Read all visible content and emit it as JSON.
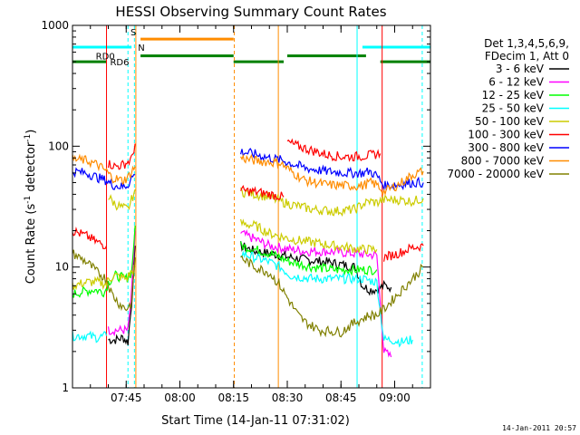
{
  "chart_data": {
    "type": "line",
    "title": "HESSI Observing Summary Count Rates",
    "xlabel": "Start Time (14-Jan-11 07:31:02)",
    "ylabel_main": "Count Rate (s",
    "ylabel_sup1": "-1",
    "ylabel_mid": " detector",
    "ylabel_sup2": "-1",
    "ylabel_end": ")",
    "timestamp": "14-Jan-2011 20:57",
    "x_range_min": [
      -1,
      99
    ],
    "y_scale": "log",
    "ylim": [
      1,
      1000
    ],
    "x_ticks": [
      {
        "t": 14,
        "label": "07:45"
      },
      {
        "t": 29,
        "label": "08:00"
      },
      {
        "t": 44,
        "label": "08:15"
      },
      {
        "t": 59,
        "label": "08:30"
      },
      {
        "t": 74,
        "label": "08:45"
      },
      {
        "t": 89,
        "label": "09:00"
      }
    ],
    "y_ticks": [
      {
        "v": 1,
        "label": "1"
      },
      {
        "v": 10,
        "label": "10"
      },
      {
        "v": 100,
        "label": "100"
      },
      {
        "v": 1000,
        "label": "1000"
      }
    ],
    "legend": {
      "header1": "Det 1,3,4,5,6,9,",
      "header2": "FDecim 1, Att 0",
      "entries": [
        {
          "label": "3 - 6 keV",
          "color": "#000000"
        },
        {
          "label": "6 - 12 keV",
          "color": "#ff00ff"
        },
        {
          "label": "12 - 25 keV",
          "color": "#00ff00"
        },
        {
          "label": "25 - 50 keV",
          "color": "#00ffff"
        },
        {
          "label": "50 - 100 keV",
          "color": "#cccc00"
        },
        {
          "label": "100 - 300 keV",
          "color": "#ff0000"
        },
        {
          "label": "300 - 800 keV",
          "color": "#0000ff"
        },
        {
          "label": "800 - 7000 keV",
          "color": "#ff8c00"
        },
        {
          "label": "7000 - 20000 keV",
          "color": "#808000"
        }
      ]
    },
    "flag_labels": {
      "rd0": "RD0",
      "rd6": "RD6",
      "s": "S",
      "n": "N"
    },
    "flags": {
      "cyan_bar": {
        "color": "#00ffff",
        "value": 660,
        "segments": [
          [
            -1,
            15.5
          ],
          [
            80,
            99
          ]
        ]
      },
      "orange_bar": {
        "color": "#ff8c00",
        "value": 770,
        "segments": [
          [
            18,
            44
          ]
        ]
      },
      "green_upper": {
        "color": "#008000",
        "value": 560,
        "segments": [
          [
            18,
            44
          ],
          [
            59,
            81
          ]
        ]
      },
      "green_lower": {
        "color": "#008000",
        "value": 500,
        "segments": [
          [
            -1,
            8.5
          ],
          [
            44,
            58
          ],
          [
            85,
            99
          ]
        ]
      }
    },
    "vlines": [
      {
        "t": 8.5,
        "color": "#ff0000",
        "dash": false
      },
      {
        "t": 14.5,
        "color": "#00ffff",
        "dash": true
      },
      {
        "t": 16.3,
        "color": "#00ffff",
        "dash": true
      },
      {
        "t": 16.7,
        "color": "#ff8c00",
        "dash": false
      },
      {
        "t": 44.2,
        "color": "#ff8c00",
        "dash": true
      },
      {
        "t": 56.5,
        "color": "#ff8c00",
        "dash": false
      },
      {
        "t": 78.5,
        "color": "#00ffff",
        "dash": false
      },
      {
        "t": 85.5,
        "color": "#ff0000",
        "dash": false
      },
      {
        "t": 96.7,
        "color": "#00ffff",
        "dash": true
      }
    ],
    "series": [
      {
        "name": "3 - 6 keV",
        "color": "#000000",
        "segments": [
          [
            [
              9,
              2.5
            ],
            [
              11,
              2.5
            ],
            [
              13,
              2.6
            ],
            [
              14.5,
              2.4
            ],
            [
              15.5,
              5
            ],
            [
              16.5,
              15
            ]
          ],
          [
            [
              46,
              15
            ],
            [
              50,
              13.5
            ],
            [
              54,
              13
            ],
            [
              57,
              12.5
            ],
            [
              60,
              12
            ],
            [
              64,
              11.5
            ],
            [
              70,
              11
            ],
            [
              74,
              10.5
            ],
            [
              78,
              10
            ],
            [
              80,
              7
            ],
            [
              82,
              6.5
            ],
            [
              84,
              6.5
            ],
            [
              86,
              7
            ],
            [
              88,
              6.8
            ]
          ]
        ]
      },
      {
        "name": "6 - 12 keV",
        "color": "#ff00ff",
        "segments": [
          [
            [
              9,
              3
            ],
            [
              11,
              3
            ],
            [
              13,
              3
            ],
            [
              14.5,
              3
            ],
            [
              15.5,
              6
            ],
            [
              16.5,
              20
            ]
          ],
          [
            [
              46,
              19
            ],
            [
              50,
              17
            ],
            [
              54,
              15
            ],
            [
              57,
              14.5
            ],
            [
              60,
              14
            ],
            [
              64,
              13.5
            ],
            [
              70,
              13.5
            ],
            [
              74,
              13.2
            ],
            [
              80,
              12.8
            ],
            [
              84,
              12.5
            ],
            [
              86,
              2
            ],
            [
              88,
              1.8
            ]
          ]
        ]
      },
      {
        "name": "12 - 25 keV",
        "color": "#00ff00",
        "segments": [
          [
            [
              -1,
              6
            ],
            [
              5,
              6.5
            ],
            [
              8,
              6.2
            ],
            [
              9,
              7.5
            ],
            [
              11,
              8.5
            ],
            [
              14,
              8
            ],
            [
              15.5,
              9
            ],
            [
              16.5,
              22
            ]
          ],
          [
            [
              46,
              15
            ],
            [
              50,
              14
            ],
            [
              54,
              13
            ],
            [
              57,
              12
            ],
            [
              60,
              11
            ],
            [
              66,
              10
            ],
            [
              72,
              9.5
            ],
            [
              78,
              9.5
            ],
            [
              84,
              9.5
            ]
          ]
        ]
      },
      {
        "name": "25 - 50 keV",
        "color": "#00ffff",
        "segments": [
          [
            [
              -1,
              2.7
            ],
            [
              3,
              2.7
            ],
            [
              6,
              2.6
            ],
            [
              8.5,
              2.7
            ]
          ],
          [
            [
              46,
              13
            ],
            [
              50,
              12
            ],
            [
              54,
              11
            ],
            [
              57,
              10
            ],
            [
              60,
              8.5
            ],
            [
              66,
              8
            ],
            [
              72,
              8
            ],
            [
              78,
              8
            ],
            [
              80,
              8
            ],
            [
              84,
              7.5
            ],
            [
              86,
              2.5
            ],
            [
              88,
              2.5
            ],
            [
              91,
              2.4
            ],
            [
              94,
              2.5
            ]
          ]
        ]
      },
      {
        "name": "50 - 100 keV",
        "color": "#cccc00",
        "segments": [
          [
            [
              -1,
              7
            ],
            [
              3,
              7.5
            ],
            [
              6,
              7.5
            ],
            [
              8.5,
              7.2
            ],
            [
              9,
              8
            ],
            [
              11,
              8.5
            ],
            [
              14,
              8
            ],
            [
              16.5,
              10
            ]
          ],
          [
            [
              46,
              23
            ],
            [
              50,
              22
            ],
            [
              54,
              19
            ],
            [
              57,
              18
            ],
            [
              60,
              17
            ],
            [
              66,
              16
            ],
            [
              72,
              15
            ],
            [
              80,
              14
            ],
            [
              84,
              14
            ]
          ],
          [
            [
              9,
              38
            ],
            [
              11,
              33
            ],
            [
              13,
              31
            ],
            [
              14.5,
              30
            ],
            [
              15.5,
              36
            ],
            [
              16.5,
              44
            ]
          ],
          [
            [
              46,
              42
            ],
            [
              50,
              40
            ],
            [
              54,
              38
            ],
            [
              57,
              35
            ],
            [
              60,
              33
            ],
            [
              66,
              30
            ],
            [
              72,
              29
            ],
            [
              78,
              30
            ],
            [
              80,
              33
            ],
            [
              82,
              35
            ],
            [
              84,
              34
            ],
            [
              86,
              36
            ],
            [
              90,
              36
            ],
            [
              94,
              35
            ],
            [
              97,
              37
            ]
          ]
        ]
      },
      {
        "name": "100 - 300 keV",
        "color": "#ff0000",
        "segments": [
          [
            [
              -1,
              20
            ],
            [
              3,
              18
            ],
            [
              6,
              16
            ],
            [
              8.5,
              15
            ]
          ],
          [
            [
              9,
              72
            ],
            [
              11,
              68
            ],
            [
              13,
              70
            ],
            [
              14.5,
              74
            ],
            [
              15.5,
              78
            ],
            [
              16.5,
              105
            ]
          ],
          [
            [
              46,
              43
            ],
            [
              50,
              42
            ],
            [
              54,
              40
            ],
            [
              58,
              38
            ]
          ],
          [
            [
              59,
              108
            ],
            [
              62,
              100
            ],
            [
              66,
              92
            ],
            [
              70,
              85
            ],
            [
              74,
              82
            ],
            [
              78,
              82
            ],
            [
              82,
              84
            ],
            [
              85,
              87
            ]
          ],
          [
            [
              86,
              12
            ],
            [
              90,
              13
            ],
            [
              94,
              14.5
            ],
            [
              97,
              15
            ]
          ]
        ]
      },
      {
        "name": "300 - 800 keV",
        "color": "#0000ff",
        "segments": [
          [
            [
              -1,
              62
            ],
            [
              3,
              60
            ],
            [
              6,
              55
            ],
            [
              8.5,
              52
            ],
            [
              10,
              48
            ],
            [
              13,
              46
            ],
            [
              14.5,
              48
            ],
            [
              15.5,
              55
            ],
            [
              16.5,
              58
            ]
          ],
          [
            [
              46,
              90
            ],
            [
              50,
              86
            ],
            [
              54,
              80
            ],
            [
              58,
              76
            ],
            [
              60,
              72
            ],
            [
              64,
              66
            ],
            [
              70,
              62
            ],
            [
              76,
              60
            ],
            [
              80,
              60
            ],
            [
              82,
              62
            ],
            [
              84,
              57
            ],
            [
              86,
              47
            ],
            [
              90,
              48
            ],
            [
              94,
              50
            ],
            [
              97,
              50
            ]
          ]
        ]
      },
      {
        "name": "800 - 7000 keV",
        "color": "#ff8c00",
        "segments": [
          [
            [
              -1,
              78
            ],
            [
              3,
              76
            ],
            [
              6,
              70
            ],
            [
              8.5,
              62
            ],
            [
              10,
              55
            ],
            [
              13,
              52
            ],
            [
              14.5,
              55
            ],
            [
              15.5,
              62
            ],
            [
              16.5,
              68
            ]
          ],
          [
            [
              46,
              80
            ],
            [
              50,
              76
            ],
            [
              54,
              74
            ],
            [
              57,
              73
            ],
            [
              60,
              62
            ],
            [
              64,
              52
            ],
            [
              70,
              48
            ],
            [
              76,
              47
            ],
            [
              80,
              47
            ],
            [
              82,
              50
            ],
            [
              84,
              48
            ],
            [
              86,
              42
            ],
            [
              90,
              48
            ],
            [
              94,
              58
            ],
            [
              97,
              62
            ]
          ]
        ]
      },
      {
        "name": "7000 - 20000 keV",
        "color": "#808000",
        "segments": [
          [
            [
              -1,
              13
            ],
            [
              3,
              11
            ],
            [
              6,
              9
            ],
            [
              8.5,
              8
            ],
            [
              10,
              6
            ],
            [
              12,
              5
            ],
            [
              14,
              4.5
            ],
            [
              15.5,
              5
            ],
            [
              16.5,
              12
            ]
          ],
          [
            [
              46,
              12
            ],
            [
              50,
              10
            ],
            [
              54,
              9
            ],
            [
              57,
              7
            ],
            [
              60,
              5
            ],
            [
              62,
              4
            ],
            [
              64,
              3.5
            ],
            [
              68,
              3
            ],
            [
              74,
              2.9
            ],
            [
              78,
              3.5
            ],
            [
              82,
              4
            ],
            [
              84,
              4
            ],
            [
              86,
              4.5
            ],
            [
              90,
              6
            ],
            [
              94,
              8
            ],
            [
              97,
              10
            ]
          ]
        ]
      }
    ]
  }
}
